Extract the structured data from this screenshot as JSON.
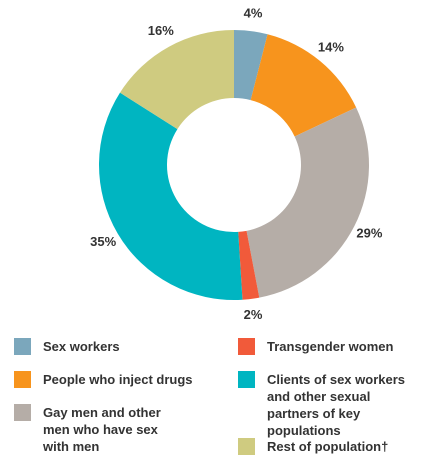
{
  "chart_data": {
    "type": "donut",
    "categories": [
      "Sex workers",
      "People who inject drugs",
      "Gay men and other men who have sex with men",
      "Transgender women",
      "Clients of sex workers and other sexual partners of key populations",
      "Rest of population†"
    ],
    "values": [
      4,
      14,
      29,
      2,
      35,
      16
    ],
    "value_labels": [
      "4%",
      "14%",
      "29%",
      "2%",
      "35%",
      "16%"
    ],
    "colors": [
      "#7ba7bc",
      "#f7941d",
      "#b5ada7",
      "#f15a3a",
      "#00b5c1",
      "#cfcb80"
    ]
  }
}
